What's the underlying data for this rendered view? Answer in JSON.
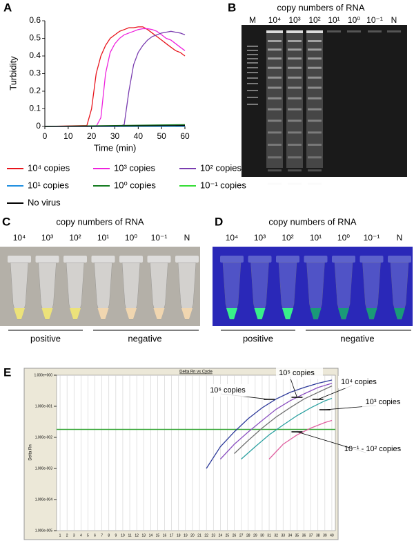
{
  "chart_data": [
    {
      "type": "line",
      "label": "A",
      "y_label": "Turbidity",
      "x_label": "Time (min)",
      "xlim": [
        0,
        60
      ],
      "xticks": [
        0,
        10,
        20,
        30,
        40,
        50,
        60
      ],
      "ylim": [
        0,
        0.6
      ],
      "yticks": [
        0,
        0.1,
        0.2,
        0.3,
        0.4,
        0.5,
        0.6
      ],
      "series": [
        {
          "name": "10⁴ copies",
          "color": "#e8141c",
          "x": [
            0,
            18,
            20,
            22,
            24,
            26,
            28,
            30,
            32,
            34,
            36,
            38,
            40,
            42,
            44,
            46,
            48,
            50,
            52,
            54,
            56,
            58,
            60
          ],
          "values": [
            0,
            0.005,
            0.1,
            0.3,
            0.4,
            0.46,
            0.5,
            0.52,
            0.54,
            0.55,
            0.56,
            0.56,
            0.565,
            0.565,
            0.55,
            0.53,
            0.51,
            0.49,
            0.47,
            0.45,
            0.43,
            0.42,
            0.4
          ]
        },
        {
          "name": "10³ copies",
          "color": "#ee22dd",
          "x": [
            0,
            22,
            24,
            26,
            28,
            30,
            32,
            34,
            36,
            38,
            40,
            42,
            44,
            46,
            48,
            50,
            52,
            54,
            56,
            58,
            60
          ],
          "values": [
            0,
            0,
            0.05,
            0.3,
            0.42,
            0.47,
            0.5,
            0.52,
            0.53,
            0.54,
            0.55,
            0.555,
            0.555,
            0.55,
            0.54,
            0.52,
            0.5,
            0.49,
            0.47,
            0.45,
            0.43
          ]
        },
        {
          "name": "10² copies",
          "color": "#7a3db0",
          "x": [
            0,
            32,
            34,
            36,
            38,
            40,
            42,
            44,
            46,
            48,
            50,
            52,
            54,
            56,
            58,
            60
          ],
          "values": [
            0,
            0,
            0.01,
            0.2,
            0.35,
            0.42,
            0.46,
            0.49,
            0.51,
            0.52,
            0.53,
            0.535,
            0.54,
            0.535,
            0.53,
            0.52
          ]
        },
        {
          "name": "10¹ copies",
          "color": "#1f8fe0",
          "x": [
            0,
            60
          ],
          "values": [
            0,
            0
          ]
        },
        {
          "name": "10⁰ copies",
          "color": "#137a1e",
          "x": [
            0,
            60
          ],
          "values": [
            0,
            0.01
          ]
        },
        {
          "name": "10⁻¹ copies",
          "color": "#33dd33",
          "x": [
            0,
            60
          ],
          "values": [
            0,
            0.005
          ]
        },
        {
          "name": "No virus",
          "color": "#000000",
          "x": [
            0,
            60
          ],
          "values": [
            0,
            0.005
          ]
        }
      ]
    },
    {
      "type": "line",
      "label": "E",
      "title": "Delta Rn vs Cycle",
      "y_label": "Delta Rn",
      "log_y": true,
      "grid": true,
      "xlim": [
        0.5,
        40.5
      ],
      "xticks": [
        1,
        2,
        3,
        4,
        5,
        6,
        7,
        8,
        9,
        10,
        11,
        12,
        13,
        14,
        15,
        16,
        17,
        18,
        19,
        20,
        21,
        22,
        23,
        24,
        25,
        26,
        27,
        28,
        29,
        30,
        31,
        32,
        33,
        34,
        35,
        36,
        37,
        38,
        39,
        40
      ],
      "ylim": [
        1e-05,
        1
      ],
      "yticks": [
        {
          "value": 1,
          "label": "1.000e+000"
        },
        {
          "value": 0.1,
          "label": "1.000e-001"
        },
        {
          "value": 0.01,
          "label": "1.000e-002"
        },
        {
          "value": 0.001,
          "label": "1.000e-003"
        },
        {
          "value": 0.0001,
          "label": "1.000e-004"
        },
        {
          "value": 1e-05,
          "label": "1.000e-005"
        }
      ],
      "threshold": 0.018,
      "threshold_color": "#3aa83a",
      "series": [
        {
          "name": "10⁶ copies",
          "color": "#2d3a9a",
          "x": [
            22,
            24,
            26,
            28,
            30,
            32,
            34,
            36,
            38,
            40
          ],
          "values": [
            0.001,
            0.005,
            0.015,
            0.04,
            0.09,
            0.17,
            0.28,
            0.4,
            0.55,
            0.7
          ]
        },
        {
          "name": "10⁵ copies",
          "color": "#8a4fc0",
          "x": [
            24,
            26,
            28,
            30,
            32,
            34,
            36,
            38,
            40
          ],
          "values": [
            0.002,
            0.006,
            0.015,
            0.035,
            0.08,
            0.15,
            0.25,
            0.4,
            0.55
          ]
        },
        {
          "name": "10⁴ copies",
          "color": "#707070",
          "x": [
            26,
            28,
            30,
            32,
            34,
            36,
            38,
            40
          ],
          "values": [
            0.003,
            0.008,
            0.02,
            0.045,
            0.09,
            0.17,
            0.28,
            0.45
          ]
        },
        {
          "name": "10³ copies",
          "color": "#2aa0a0",
          "x": [
            27,
            29,
            31,
            33,
            35,
            37,
            39,
            40
          ],
          "values": [
            0.002,
            0.005,
            0.012,
            0.025,
            0.05,
            0.09,
            0.15,
            0.18
          ]
        },
        {
          "name": "10⁻¹ - 10² copies",
          "color": "#e060a0",
          "x": [
            31,
            33,
            35,
            37,
            39,
            40
          ],
          "values": [
            0.002,
            0.006,
            0.012,
            0.02,
            0.03,
            0.035
          ]
        }
      ]
    }
  ],
  "gel": {
    "label": "B",
    "title": "copy numbers of RNA",
    "lanes": [
      "M",
      "10⁴",
      "10³",
      "10²",
      "10¹",
      "10⁰",
      "10⁻¹",
      "N"
    ]
  },
  "photos": [
    {
      "label": "C",
      "title": "copy numbers of RNA",
      "lanes": [
        "10⁴",
        "10³",
        "10²",
        "10¹",
        "10⁰",
        "10⁻¹",
        "N"
      ],
      "groups": [
        "positive",
        "negative"
      ]
    },
    {
      "label": "D",
      "title": "copy numbers of RNA",
      "lanes": [
        "10⁴",
        "10³",
        "10²",
        "10¹",
        "10⁰",
        "10⁻¹",
        "N"
      ],
      "groups": [
        "positive",
        "negative"
      ]
    }
  ]
}
